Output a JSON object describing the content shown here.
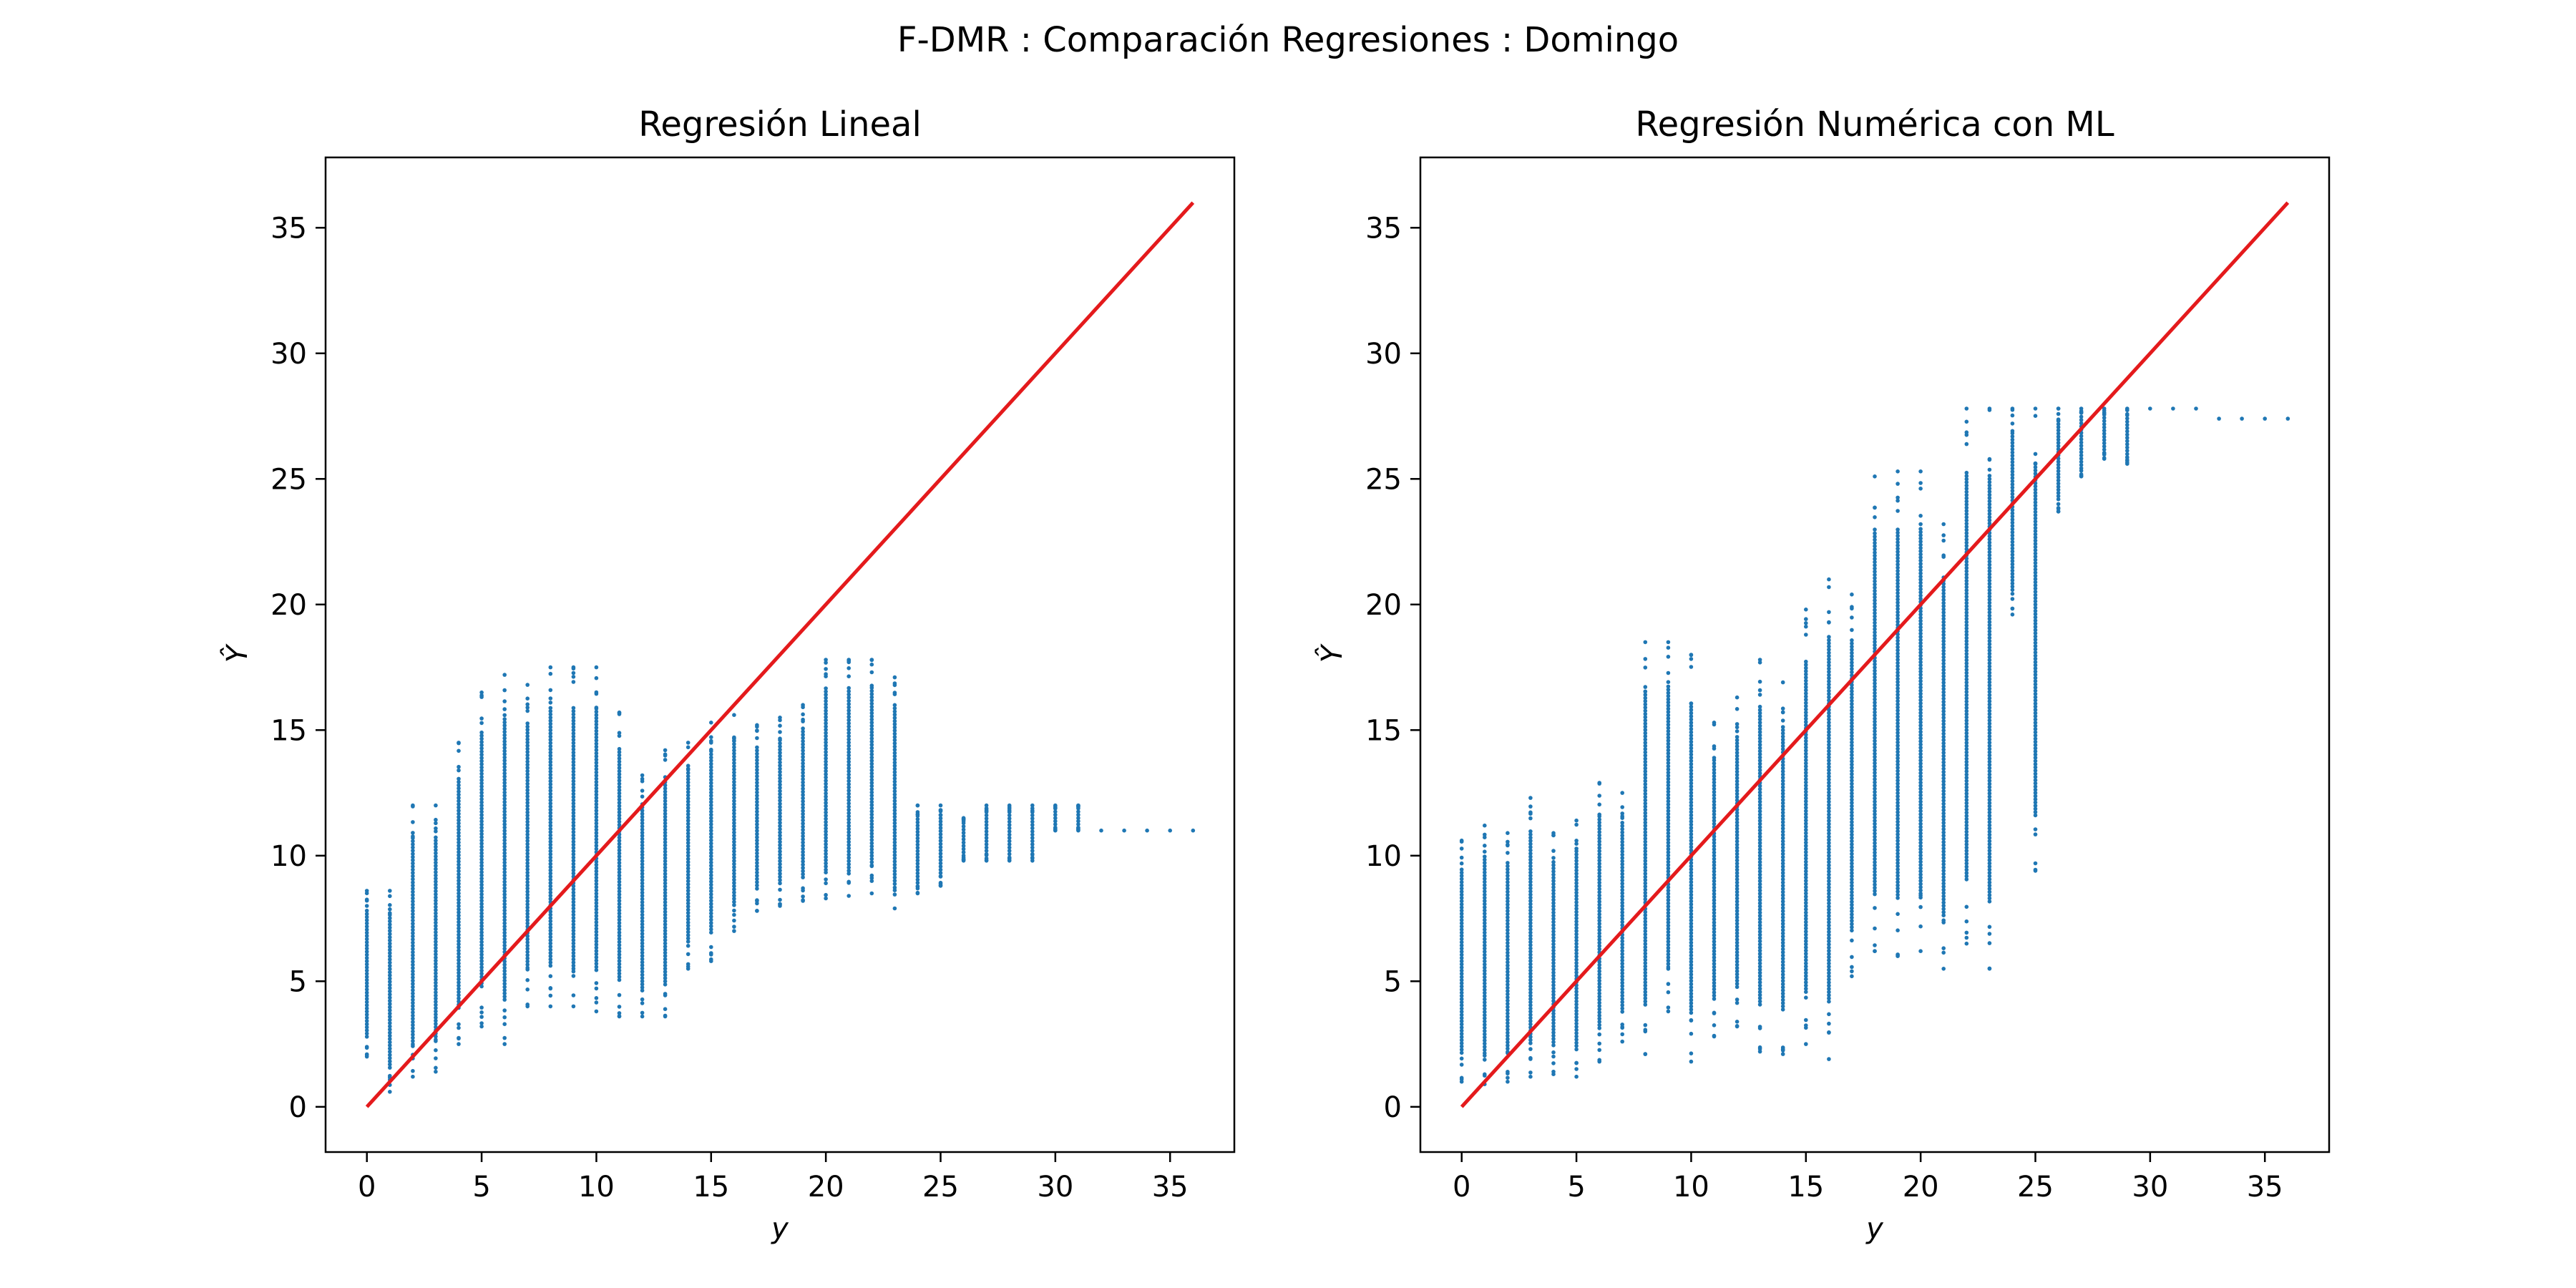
{
  "figure_title": "F-DMR : Comparación Regresiones : Domingo",
  "colors": {
    "points": "#1f77b4",
    "reference_line": "#e41a1c",
    "axes": "#000000",
    "background": "#ffffff"
  },
  "chart_data": [
    {
      "type": "scatter",
      "title": "Regresión Lineal",
      "xlabel": "y",
      "ylabel": "Ŷ",
      "xlim": [
        -1.8,
        37.8
      ],
      "ylim": [
        -1.8,
        37.8
      ],
      "xticks": [
        0,
        5,
        10,
        15,
        20,
        25,
        30,
        35
      ],
      "yticks": [
        0,
        5,
        10,
        15,
        20,
        25,
        30,
        35
      ],
      "grid": false,
      "legend": "none",
      "reference_line": {
        "from": [
          0,
          0
        ],
        "to": [
          36,
          36
        ]
      },
      "columns": [
        {
          "x": 0,
          "ymin": 2.0,
          "ymax": 8.6
        },
        {
          "x": 1,
          "ymin": 0.6,
          "ymax": 8.6
        },
        {
          "x": 2,
          "ymin": 1.2,
          "ymax": 12.0
        },
        {
          "x": 3,
          "ymin": 1.4,
          "ymax": 12.0
        },
        {
          "x": 4,
          "ymin": 2.5,
          "ymax": 14.5
        },
        {
          "x": 5,
          "ymin": 3.2,
          "ymax": 16.5
        },
        {
          "x": 6,
          "ymin": 2.5,
          "ymax": 17.2
        },
        {
          "x": 7,
          "ymin": 4.0,
          "ymax": 16.8
        },
        {
          "x": 8,
          "ymin": 4.0,
          "ymax": 17.5
        },
        {
          "x": 9,
          "ymin": 4.0,
          "ymax": 17.5
        },
        {
          "x": 10,
          "ymin": 3.8,
          "ymax": 17.5
        },
        {
          "x": 11,
          "ymin": 3.6,
          "ymax": 15.7
        },
        {
          "x": 12,
          "ymin": 3.6,
          "ymax": 13.2
        },
        {
          "x": 13,
          "ymin": 3.6,
          "ymax": 14.2
        },
        {
          "x": 14,
          "ymin": 5.5,
          "ymax": 14.5
        },
        {
          "x": 15,
          "ymin": 5.8,
          "ymax": 15.3
        },
        {
          "x": 16,
          "ymin": 7.0,
          "ymax": 15.6
        },
        {
          "x": 17,
          "ymin": 7.8,
          "ymax": 15.2
        },
        {
          "x": 18,
          "ymin": 8.0,
          "ymax": 15.5
        },
        {
          "x": 19,
          "ymin": 8.2,
          "ymax": 16.0
        },
        {
          "x": 20,
          "ymin": 8.3,
          "ymax": 17.8
        },
        {
          "x": 21,
          "ymin": 8.4,
          "ymax": 17.8
        },
        {
          "x": 22,
          "ymin": 8.5,
          "ymax": 17.8
        },
        {
          "x": 23,
          "ymin": 7.9,
          "ymax": 17.1
        },
        {
          "x": 24,
          "ymin": 8.5,
          "ymax": 12.0
        },
        {
          "x": 25,
          "ymin": 8.8,
          "ymax": 12.0
        },
        {
          "x": 26,
          "ymin": 9.8,
          "ymax": 11.5
        },
        {
          "x": 27,
          "ymin": 9.8,
          "ymax": 12.0
        },
        {
          "x": 28,
          "ymin": 9.8,
          "ymax": 12.0
        },
        {
          "x": 29,
          "ymin": 9.8,
          "ymax": 12.0
        },
        {
          "x": 30,
          "ymin": 11.0,
          "ymax": 12.0
        },
        {
          "x": 31,
          "ymin": 11.0,
          "ymax": 12.0
        },
        {
          "x": 32,
          "ymin": 11.0,
          "ymax": 11.0
        },
        {
          "x": 33,
          "ymin": 11.0,
          "ymax": 11.0
        },
        {
          "x": 34,
          "ymin": 11.0,
          "ymax": 11.0
        },
        {
          "x": 35,
          "ymin": 11.0,
          "ymax": 11.0
        },
        {
          "x": 36,
          "ymin": 11.0,
          "ymax": 11.0
        }
      ]
    },
    {
      "type": "scatter",
      "title": "Regresión Numérica con ML",
      "xlabel": "y",
      "ylabel": "Ŷ",
      "xlim": [
        -1.8,
        37.8
      ],
      "ylim": [
        -1.8,
        37.8
      ],
      "xticks": [
        0,
        5,
        10,
        15,
        20,
        25,
        30,
        35
      ],
      "yticks": [
        0,
        5,
        10,
        15,
        20,
        25,
        30,
        35
      ],
      "grid": false,
      "legend": "none",
      "reference_line": {
        "from": [
          0,
          0
        ],
        "to": [
          36,
          36
        ]
      },
      "columns": [
        {
          "x": 0,
          "ymin": 1.0,
          "ymax": 10.6
        },
        {
          "x": 1,
          "ymin": 0.9,
          "ymax": 11.2
        },
        {
          "x": 2,
          "ymin": 1.0,
          "ymax": 10.9
        },
        {
          "x": 3,
          "ymin": 1.2,
          "ymax": 12.3
        },
        {
          "x": 4,
          "ymin": 1.3,
          "ymax": 10.9
        },
        {
          "x": 5,
          "ymin": 1.2,
          "ymax": 11.4
        },
        {
          "x": 6,
          "ymin": 1.8,
          "ymax": 12.9
        },
        {
          "x": 7,
          "ymin": 2.6,
          "ymax": 12.5
        },
        {
          "x": 8,
          "ymin": 2.1,
          "ymax": 18.5
        },
        {
          "x": 9,
          "ymin": 3.8,
          "ymax": 18.5
        },
        {
          "x": 10,
          "ymin": 1.8,
          "ymax": 18.0
        },
        {
          "x": 11,
          "ymin": 2.8,
          "ymax": 15.3
        },
        {
          "x": 12,
          "ymin": 3.2,
          "ymax": 16.3
        },
        {
          "x": 13,
          "ymin": 2.2,
          "ymax": 17.8
        },
        {
          "x": 14,
          "ymin": 2.1,
          "ymax": 16.9
        },
        {
          "x": 15,
          "ymin": 2.5,
          "ymax": 19.8
        },
        {
          "x": 16,
          "ymin": 1.9,
          "ymax": 21.0
        },
        {
          "x": 17,
          "ymin": 5.2,
          "ymax": 20.4
        },
        {
          "x": 18,
          "ymin": 6.2,
          "ymax": 25.1
        },
        {
          "x": 19,
          "ymin": 6.0,
          "ymax": 25.3
        },
        {
          "x": 20,
          "ymin": 6.2,
          "ymax": 25.3
        },
        {
          "x": 21,
          "ymin": 5.5,
          "ymax": 23.2
        },
        {
          "x": 22,
          "ymin": 6.5,
          "ymax": 27.8
        },
        {
          "x": 23,
          "ymin": 5.5,
          "ymax": 27.8
        },
        {
          "x": 24,
          "ymin": 19.6,
          "ymax": 27.8
        },
        {
          "x": 25,
          "ymin": 9.4,
          "ymax": 27.8
        },
        {
          "x": 26,
          "ymin": 23.7,
          "ymax": 27.8
        },
        {
          "x": 27,
          "ymin": 25.1,
          "ymax": 27.8
        },
        {
          "x": 28,
          "ymin": 25.8,
          "ymax": 27.8
        },
        {
          "x": 29,
          "ymin": 25.6,
          "ymax": 27.8
        },
        {
          "x": 30,
          "ymin": 27.8,
          "ymax": 27.8
        },
        {
          "x": 31,
          "ymin": 27.8,
          "ymax": 27.8
        },
        {
          "x": 32,
          "ymin": 27.8,
          "ymax": 27.8
        },
        {
          "x": 33,
          "ymin": 27.4,
          "ymax": 27.4
        },
        {
          "x": 34,
          "ymin": 27.4,
          "ymax": 27.4
        },
        {
          "x": 35,
          "ymin": 27.4,
          "ymax": 27.4
        },
        {
          "x": 36,
          "ymin": 27.4,
          "ymax": 27.4
        }
      ]
    }
  ]
}
